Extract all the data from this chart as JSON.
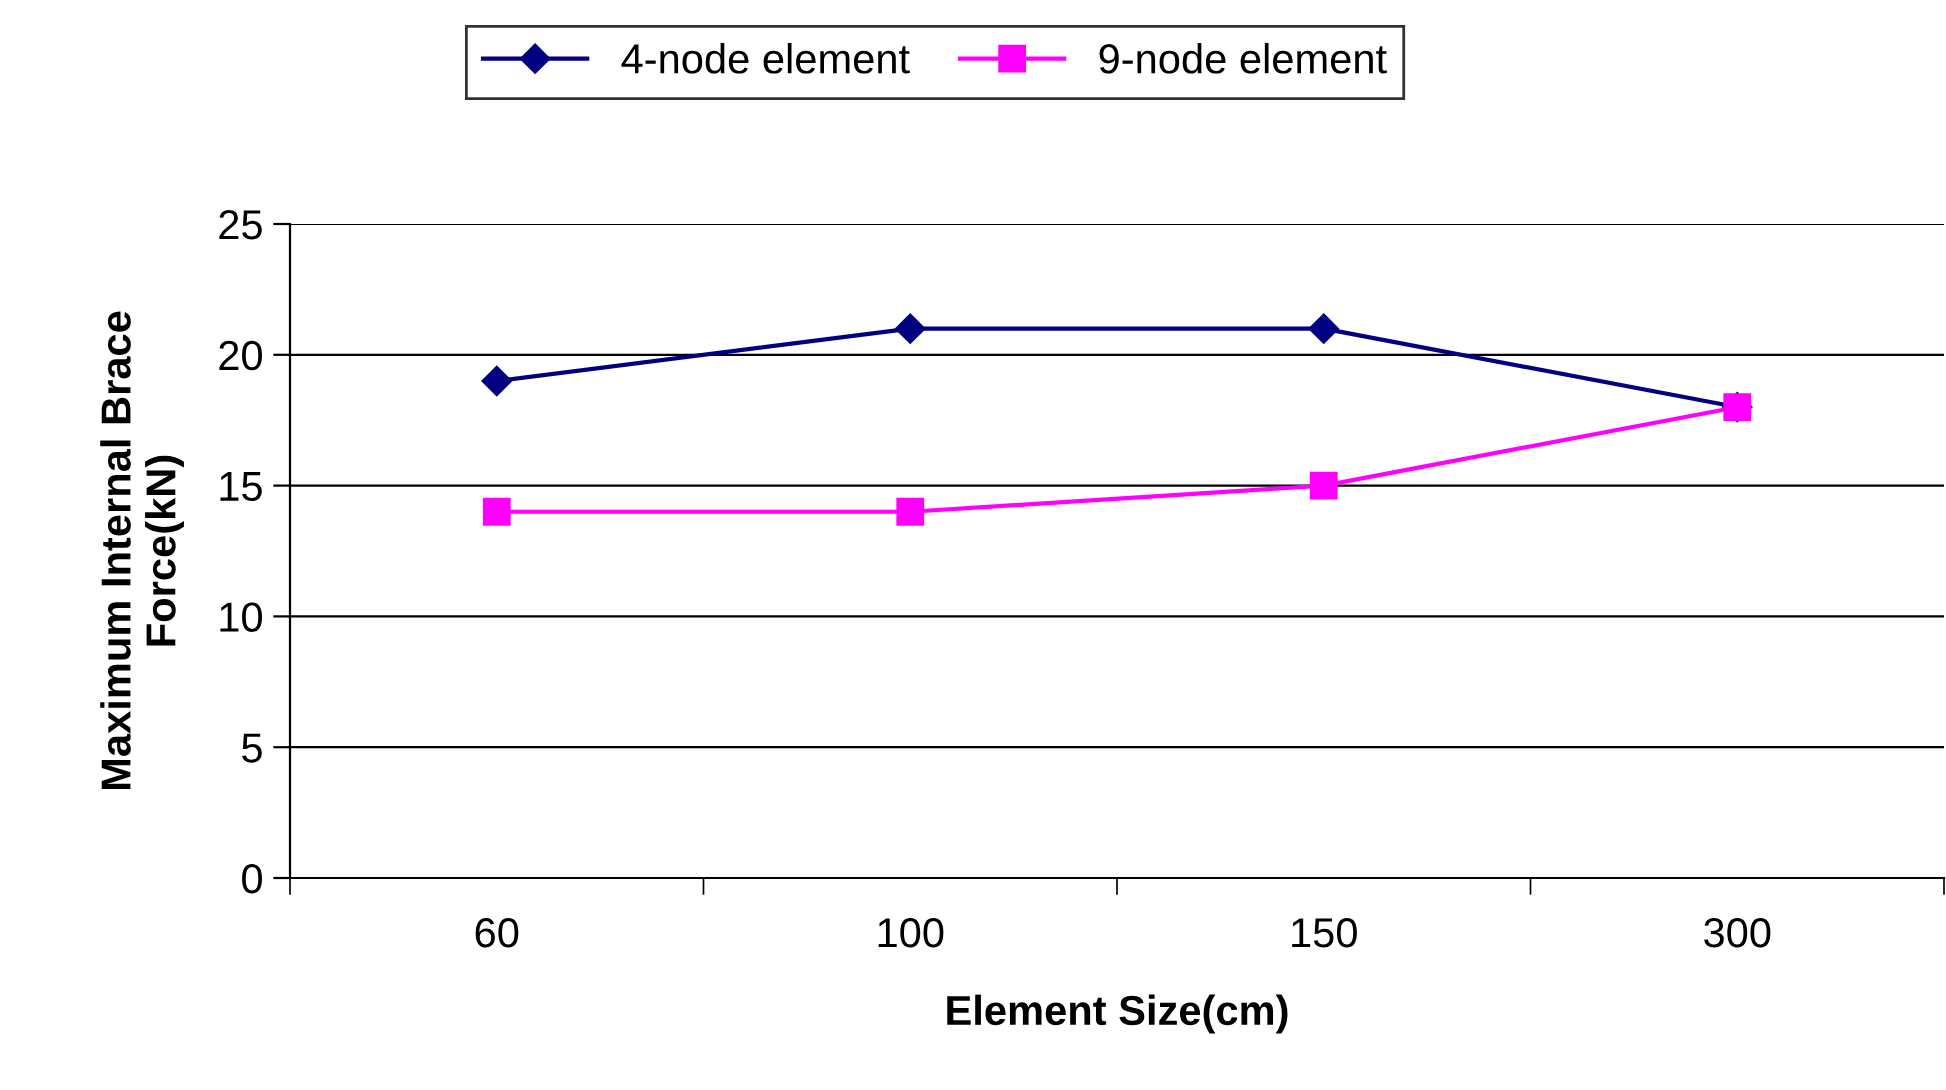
{
  "chart_data": {
    "type": "line",
    "xlabel": "Element Size(cm)",
    "ylabel": "Maximum Internal Brace\nForce(kN)",
    "categories": [
      "60",
      "100",
      "150",
      "300"
    ],
    "series": [
      {
        "name": "4-node element",
        "color": "#000080",
        "marker": "diamond",
        "values": [
          19,
          21,
          21,
          18
        ]
      },
      {
        "name": "9-node element",
        "color": "#ff00ff",
        "marker": "square",
        "values": [
          14,
          14,
          15,
          18
        ]
      }
    ],
    "ylim": [
      0,
      25
    ],
    "yticks": [
      0,
      5,
      10,
      15,
      20,
      25
    ],
    "grid": "y",
    "legend": "top",
    "line_style": "solid"
  }
}
